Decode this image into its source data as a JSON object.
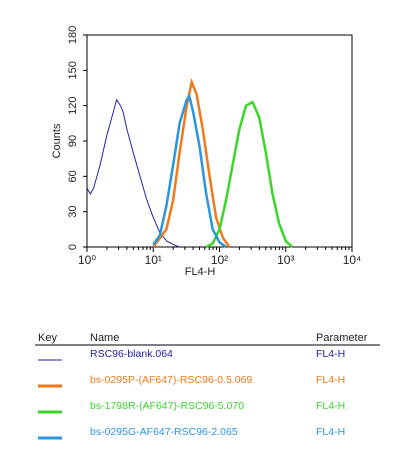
{
  "chart_data": {
    "type": "line",
    "xlabel": "FL4-H",
    "ylabel": "Counts",
    "xscale": "log",
    "xlim": [
      1,
      10000
    ],
    "xticks": [
      {
        "value": 1,
        "label": "10⁰"
      },
      {
        "value": 10,
        "label": "10¹"
      },
      {
        "value": 100,
        "label": "10²"
      },
      {
        "value": 1000,
        "label": "10³"
      },
      {
        "value": 10000,
        "label": "10⁴"
      }
    ],
    "ylim": [
      0,
      180
    ],
    "yticks": [
      0,
      30,
      60,
      90,
      120,
      150,
      180
    ],
    "key_header": [
      "Key",
      "Name",
      "Parameter"
    ],
    "series": [
      {
        "name": "RSC96-blank.064",
        "parameter": "FL4-H",
        "color": "#2222a8",
        "x": [
          1,
          1.12,
          1.26,
          1.58,
          2,
          2.5,
          2.8,
          3.2,
          3.5,
          4,
          5,
          6.3,
          8,
          10,
          12.6,
          16,
          20,
          25
        ],
        "values": [
          50,
          45,
          50,
          70,
          95,
          115,
          125,
          120,
          115,
          100,
          80,
          60,
          40,
          25,
          12,
          5,
          2,
          0
        ]
      },
      {
        "name": "bs-0295P-(AF647)-RSC96-0.5.069",
        "parameter": "FL4-H",
        "color": "#f07a1a",
        "x": [
          10,
          15.8,
          20,
          25,
          32,
          38,
          45,
          56,
          71,
          89,
          112,
          141
        ],
        "values": [
          0,
          15,
          40,
          80,
          120,
          140,
          130,
          100,
          60,
          25,
          8,
          0
        ]
      },
      {
        "name": "bs-1798R-(AF647)-RSC96-5.070",
        "parameter": "FL4-H",
        "color": "#3ad62a",
        "x": [
          63,
          79,
          100,
          126,
          158,
          200,
          251,
          316,
          398,
          501,
          631,
          794,
          1000,
          1259
        ],
        "values": [
          0,
          3,
          15,
          40,
          70,
          100,
          120,
          123,
          110,
          80,
          45,
          20,
          5,
          0
        ]
      },
      {
        "name": "bs-0295G-AF647-RSC96-2.065",
        "parameter": "FL4-H",
        "color": "#2a96e0",
        "x": [
          10,
          12.6,
          15.8,
          20,
          25,
          32,
          35,
          40,
          50,
          63,
          79,
          100,
          126
        ],
        "values": [
          2,
          10,
          35,
          70,
          105,
          125,
          128,
          115,
          85,
          45,
          15,
          4,
          0
        ]
      }
    ]
  }
}
